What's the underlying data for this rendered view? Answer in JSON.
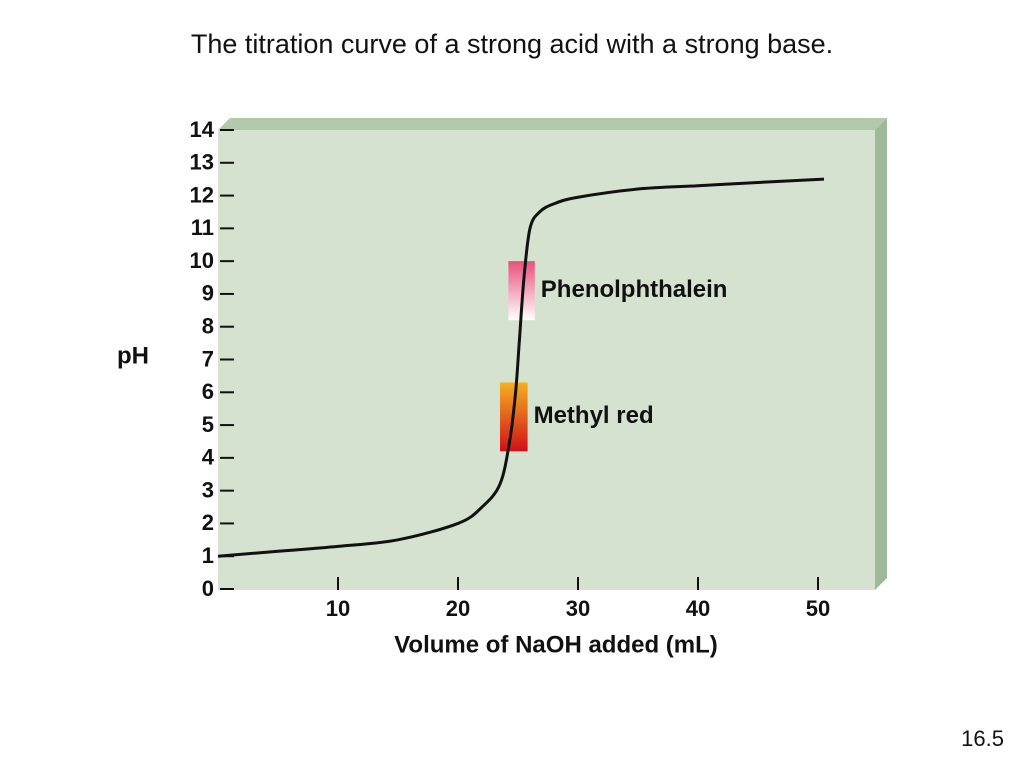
{
  "chart_data": {
    "type": "line",
    "title": "The titration curve of a strong acid with a strong base.",
    "x_label": "Volume of NaOH added (mL)",
    "y_label": "pH",
    "x": [
      0,
      5,
      10,
      15,
      20,
      22,
      23.5,
      24.3,
      24.8,
      25.1,
      25.5,
      26,
      26.8,
      28,
      30,
      35,
      40,
      45,
      50.5
    ],
    "series": [
      {
        "name": "pH",
        "color": "#111111",
        "values": [
          1.0,
          1.15,
          1.3,
          1.5,
          2.0,
          2.5,
          3.2,
          4.5,
          6.0,
          7.5,
          9.5,
          11.0,
          11.5,
          11.75,
          11.95,
          12.2,
          12.3,
          12.4,
          12.5
        ]
      }
    ],
    "indicators": [
      {
        "name": "Phenolphthalein",
        "range": [
          8.2,
          10
        ],
        "xrange": [
          24.2,
          26.4
        ],
        "colors": [
          "#e8507a",
          "#ffffff"
        ]
      },
      {
        "name": "Methyl red",
        "range": [
          4.2,
          6.3
        ],
        "xrange": [
          23.5,
          25.8
        ],
        "colors": [
          "#f5b020",
          "#d0101a"
        ]
      }
    ],
    "xlim": [
      0,
      55
    ],
    "ylim": [
      0,
      14
    ],
    "xticks": [
      10,
      20,
      30,
      40,
      50
    ],
    "yticks": [
      0,
      1,
      2,
      3,
      4,
      5,
      6,
      7,
      8,
      9,
      10,
      11,
      12,
      13,
      14
    ],
    "footer": "16.5"
  }
}
